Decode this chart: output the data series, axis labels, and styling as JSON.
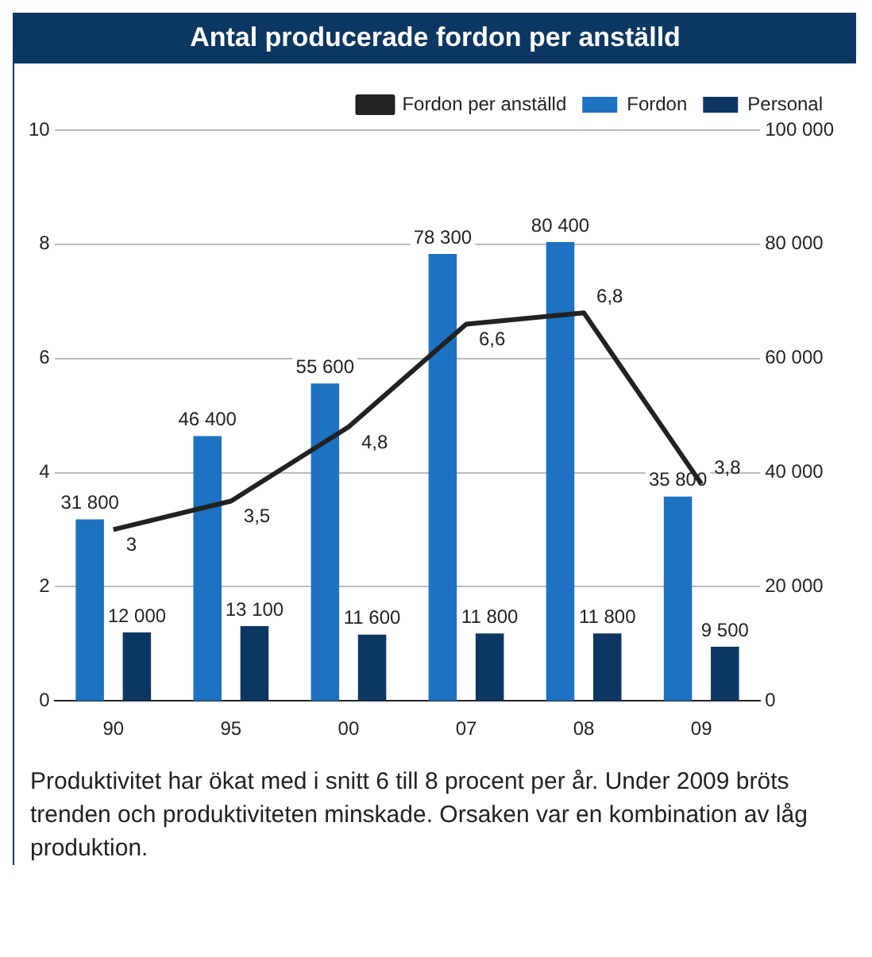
{
  "chart_data": {
    "type": "bar",
    "title": "Antal producerade fordon per anställd",
    "categories": [
      "90",
      "95",
      "00",
      "07",
      "08",
      "09"
    ],
    "series": [
      {
        "name": "Fordon",
        "axis": "y2",
        "color": "#1e72c2",
        "values": [
          31800,
          46400,
          55600,
          78300,
          80400,
          35800
        ],
        "value_labels": [
          "31 800",
          "46 400",
          "55 600",
          "78 300",
          "80 400",
          "35 800"
        ]
      },
      {
        "name": "Personal",
        "axis": "y2",
        "color": "#0c3763",
        "values": [
          12000,
          13100,
          11600,
          11800,
          11800,
          9500
        ],
        "value_labels": [
          "12 000",
          "13 100",
          "11 600",
          "11 800",
          "11 800",
          "9 500"
        ]
      },
      {
        "name": "Fordon per anställd",
        "type": "line",
        "color": "#222222",
        "values": [
          3,
          3.5,
          4.8,
          6.6,
          6.8,
          3.8
        ],
        "value_labels": [
          "3",
          "3,5",
          "4,8",
          "6,6",
          "6,8",
          "3,8"
        ]
      }
    ],
    "ylim": [
      0,
      10
    ],
    "yticks": [
      0,
      2,
      4,
      6,
      8,
      10
    ],
    "y2lim": [
      0,
      100000
    ],
    "y2ticks": [
      {
        "value": 0,
        "label": "0"
      },
      {
        "value": 20000,
        "label": "20 000"
      },
      {
        "value": 40000,
        "label": "40 000"
      },
      {
        "value": 60000,
        "label": "60 000"
      },
      {
        "value": 80000,
        "label": "80 000"
      },
      {
        "value": 100000,
        "label": "100 000"
      }
    ],
    "grid": "y",
    "legend": "top right",
    "marker": "none",
    "line_style": "solid",
    "annotations": [
      "Produktivitet har ökat med i snitt 6 till 8 procent per år. Under 2009 bröts trenden och produktiviteten minskade. Orsaken var en kombination av låg produktion."
    ]
  }
}
